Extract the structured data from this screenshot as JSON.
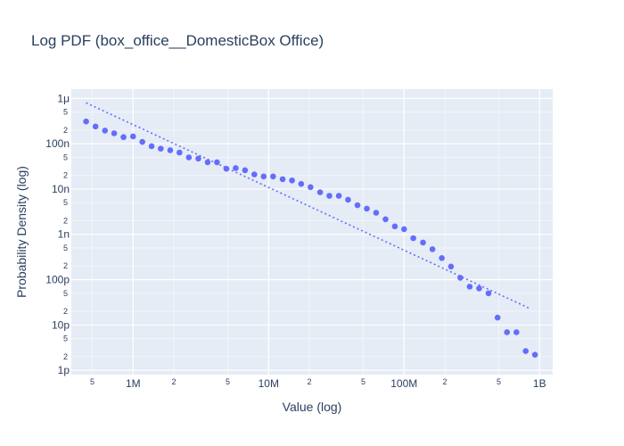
{
  "chart_data": {
    "type": "scatter",
    "title": "Log PDF (box_office__DomesticBox Office)",
    "xlabel": "Value (log)",
    "ylabel": "Probability Density (log)",
    "x_scale": "log",
    "y_scale": "log",
    "xlim": [
      350000,
      1250000000
    ],
    "ylim": [
      8e-13,
      1.6e-06
    ],
    "grid": true,
    "legend": "none",
    "x_major_ticks": [
      {
        "value": 1000000,
        "label": "1M"
      },
      {
        "value": 10000000,
        "label": "10M"
      },
      {
        "value": 100000000,
        "label": "100M"
      },
      {
        "value": 1000000000,
        "label": "1B"
      }
    ],
    "x_minor_ticks": [
      {
        "value": 500000,
        "label": "5"
      },
      {
        "value": 2000000,
        "label": "2"
      },
      {
        "value": 5000000,
        "label": "5"
      },
      {
        "value": 20000000,
        "label": "2"
      },
      {
        "value": 50000000,
        "label": "5"
      },
      {
        "value": 200000000,
        "label": "2"
      },
      {
        "value": 500000000,
        "label": "5"
      }
    ],
    "y_major_ticks": [
      {
        "value": 1e-12,
        "label": "1p"
      },
      {
        "value": 1e-11,
        "label": "10p"
      },
      {
        "value": 1e-10,
        "label": "100p"
      },
      {
        "value": 1e-09,
        "label": "1n"
      },
      {
        "value": 1e-08,
        "label": "10n"
      },
      {
        "value": 1e-07,
        "label": "100n"
      },
      {
        "value": 1e-06,
        "label": "1μ"
      }
    ],
    "y_minor_ticks": [
      {
        "value": 2e-12,
        "label": "2"
      },
      {
        "value": 5e-12,
        "label": "5"
      },
      {
        "value": 2e-11,
        "label": "2"
      },
      {
        "value": 5e-11,
        "label": "5"
      },
      {
        "value": 2e-10,
        "label": "2"
      },
      {
        "value": 5e-10,
        "label": "5"
      },
      {
        "value": 2e-09,
        "label": "2"
      },
      {
        "value": 5e-09,
        "label": "5"
      },
      {
        "value": 2e-08,
        "label": "2"
      },
      {
        "value": 5e-08,
        "label": "5"
      },
      {
        "value": 2e-07,
        "label": "2"
      },
      {
        "value": 5e-07,
        "label": "5"
      }
    ],
    "series": [
      {
        "type": "scatter",
        "color": "#636efa",
        "points": [
          [
            450000,
            3.1e-07
          ],
          [
            528000,
            2.4e-07
          ],
          [
            620000,
            1.95e-07
          ],
          [
            725000,
            1.7e-07
          ],
          [
            850000,
            1.4e-07
          ],
          [
            1000000,
            1.45e-07
          ],
          [
            1170000,
            1.1e-07
          ],
          [
            1370000,
            8.8e-08
          ],
          [
            1600000,
            7.8e-08
          ],
          [
            1880000,
            7.2e-08
          ],
          [
            2200000,
            6.4e-08
          ],
          [
            2580000,
            5e-08
          ],
          [
            3030000,
            4.7e-08
          ],
          [
            3550000,
            3.9e-08
          ],
          [
            4160000,
            3.9e-08
          ],
          [
            4880000,
            2.8e-08
          ],
          [
            5720000,
            2.9e-08
          ],
          [
            6700000,
            2.6e-08
          ],
          [
            7850000,
            2.1e-08
          ],
          [
            9200000,
            1.9e-08
          ],
          [
            10800000,
            1.9e-08
          ],
          [
            12700000,
            1.65e-08
          ],
          [
            14900000,
            1.55e-08
          ],
          [
            17400000,
            1.3e-08
          ],
          [
            20400000,
            1.1e-08
          ],
          [
            24000000,
            8.5e-09
          ],
          [
            28100000,
            7.1e-09
          ],
          [
            33000000,
            7.1e-09
          ],
          [
            38600000,
            5.8e-09
          ],
          [
            45300000,
            4.4e-09
          ],
          [
            53100000,
            3.7e-09
          ],
          [
            62200000,
            3e-09
          ],
          [
            73000000,
            2.15e-09
          ],
          [
            85500000,
            1.5e-09
          ],
          [
            100000000,
            1.3e-09
          ],
          [
            117000000,
            8.2e-10
          ],
          [
            138000000,
            6.6e-10
          ],
          [
            162000000,
            4.7e-10
          ],
          [
            190000000,
            3e-10
          ],
          [
            222000000,
            1.95e-10
          ],
          [
            260000000,
            1.1e-10
          ],
          [
            305000000,
            7e-11
          ],
          [
            358000000,
            6.4e-11
          ],
          [
            420000000,
            5e-11
          ],
          [
            490000000,
            1.45e-11
          ],
          [
            575000000,
            6.9e-12
          ],
          [
            675000000,
            6.9e-12
          ],
          [
            790000000,
            2.65e-12
          ],
          [
            925000000,
            2.2e-12
          ]
        ]
      },
      {
        "type": "line",
        "style": "dotted",
        "color": "#636efa",
        "points": [
          [
            450000,
            8e-07
          ],
          [
            850000000,
            2.3e-11
          ]
        ]
      }
    ]
  }
}
